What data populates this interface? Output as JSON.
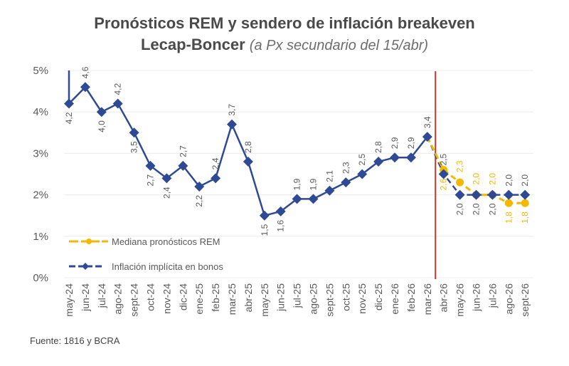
{
  "title_line1": "Pronósticos REM y sendero de inflación breakeven",
  "title_line2_main": "Lecap-Boncer",
  "title_line2_sub": "(a Px secundario del 15/abr)",
  "source": "Fuente: 1816 y BCRA",
  "chart_data": {
    "type": "line",
    "title": "Pronósticos REM y sendero de inflación breakeven Lecap-Boncer (a Px secundario del 15/abr)",
    "xlabel": "",
    "ylabel": "",
    "ylim": [
      0,
      5
    ],
    "yticks": [
      0,
      1,
      2,
      3,
      4,
      5
    ],
    "ytick_labels": [
      "0%",
      "1%",
      "2%",
      "3%",
      "4%",
      "5%"
    ],
    "grid": true,
    "legend_position": "bottom-left",
    "vertical_marker": {
      "between": [
        "mar-26",
        "abr-26"
      ],
      "color": "#c0392b"
    },
    "categories": [
      "may-24",
      "jun-24",
      "jul-24",
      "ago-24",
      "sept-24",
      "oct-24",
      "nov-24",
      "dic-24",
      "ene-25",
      "feb-25",
      "mar-25",
      "abr-25",
      "may-25",
      "jun-25",
      "jul-25",
      "ago-25",
      "sept-25",
      "oct-25",
      "nov-25",
      "dic-25",
      "ene-26",
      "feb-26",
      "mar-26",
      "abr-26",
      "may-26",
      "jun-26",
      "jul-26",
      "ago-26",
      "sept-26"
    ],
    "series": [
      {
        "name": "Mediana pronósticos REM",
        "color": "#f5b800",
        "style": "dashed",
        "marker": "circle",
        "values": [
          null,
          null,
          null,
          null,
          null,
          null,
          null,
          null,
          null,
          null,
          null,
          null,
          null,
          null,
          null,
          null,
          null,
          null,
          null,
          null,
          null,
          null,
          3.4,
          2.6,
          2.3,
          2.0,
          2.0,
          1.8,
          1.8
        ],
        "labels": [
          null,
          null,
          null,
          null,
          null,
          null,
          null,
          null,
          null,
          null,
          null,
          null,
          null,
          null,
          null,
          null,
          null,
          null,
          null,
          null,
          null,
          null,
          null,
          "2,6",
          "2,3",
          "2,0",
          "2,0",
          "1,8",
          "1,8"
        ]
      },
      {
        "name": "Inflación implícita en bonos",
        "color": "#2e4a94",
        "style": "solid-then-dashed",
        "marker": "diamond",
        "values": [
          4.2,
          4.6,
          4.0,
          4.2,
          3.5,
          2.7,
          2.4,
          2.7,
          2.2,
          2.4,
          3.7,
          2.8,
          1.5,
          1.6,
          1.9,
          1.9,
          2.1,
          2.3,
          2.5,
          2.8,
          2.9,
          2.9,
          3.4,
          2.5,
          2.0,
          2.0,
          2.0,
          2.0,
          2.0
        ],
        "labels": [
          "4,2",
          "4,6",
          "4,0",
          "4,2",
          "3,5",
          "2,7",
          "2,4",
          "2,7",
          "2,2",
          "2,4",
          "3,7",
          "2,8",
          "1,5",
          "1,6",
          "1,9",
          "1,9",
          "2,1",
          "2,3",
          "2,5",
          "2,8",
          "2,9",
          "2,9",
          "3,4",
          "2,5",
          "2,0",
          "2,0",
          "2,0",
          "2,0",
          "2,0"
        ]
      }
    ]
  }
}
